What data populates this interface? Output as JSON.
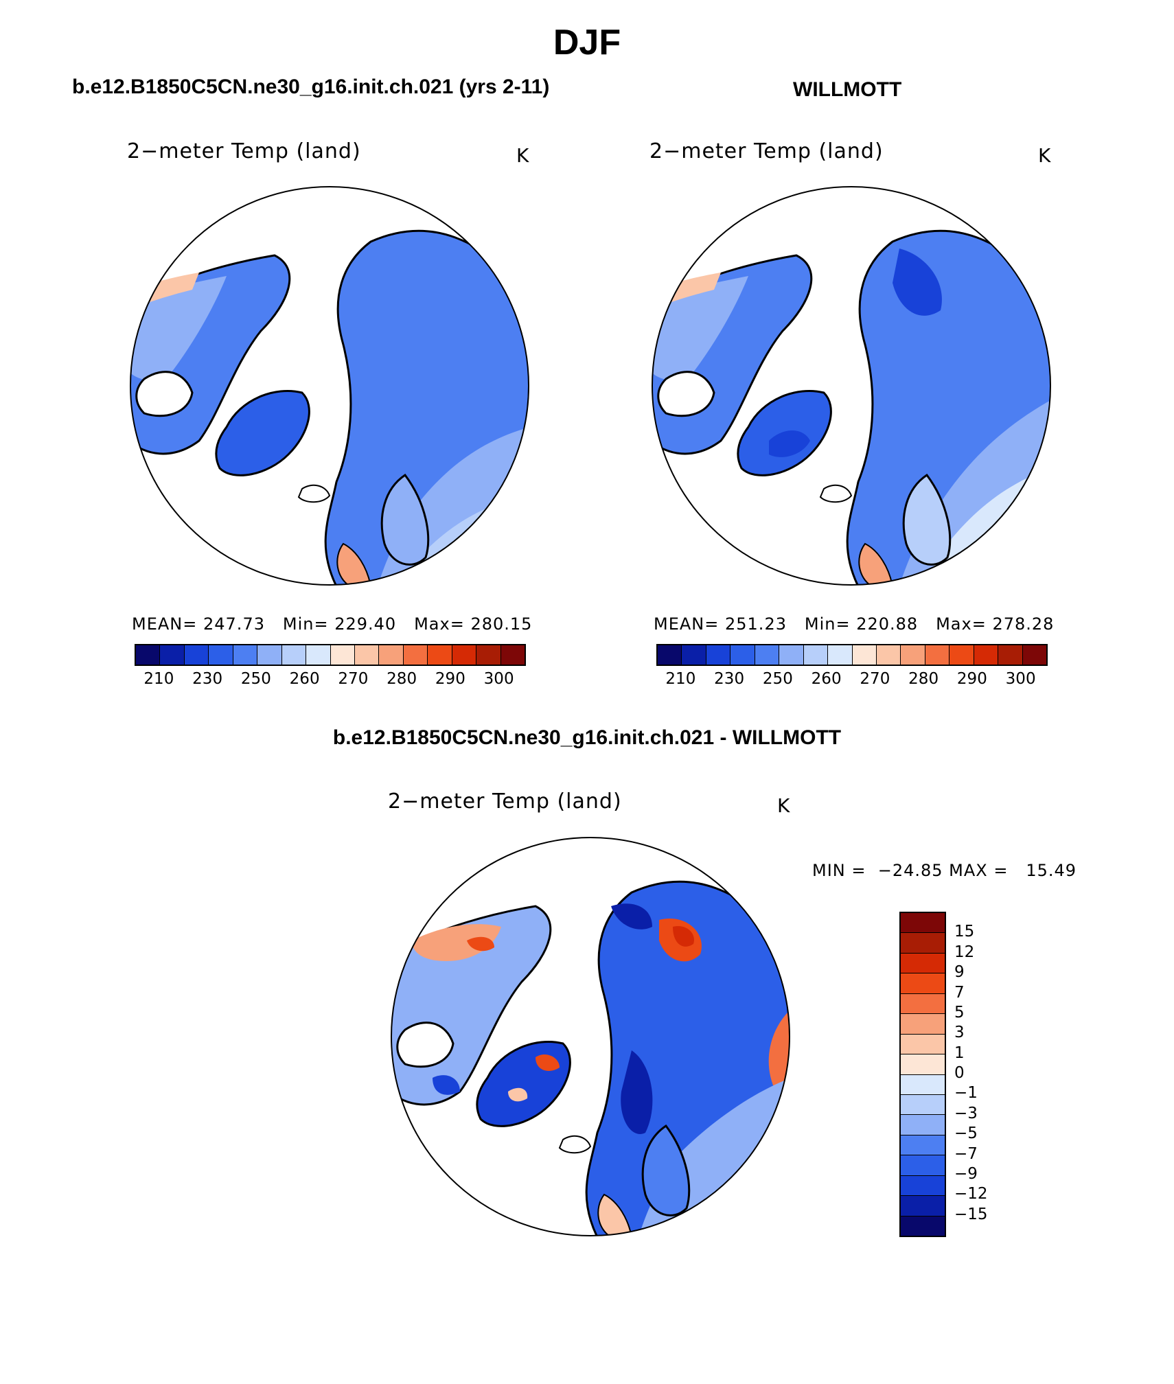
{
  "page": {
    "title": "DJF"
  },
  "panels": [
    {
      "case_title": "b.e12.B1850C5CN.ne30_g16.init.ch.021 (yrs 2-11)",
      "plot_title": "2−meter Temp (land)",
      "units": "K",
      "stats": {
        "mean_label": "MEAN=",
        "mean": "247.73",
        "min_label": "Min=",
        "min": "229.40",
        "max_label": "Max=",
        "max": "280.15"
      }
    },
    {
      "case_title": "WILLMOTT",
      "plot_title": "2−meter Temp (land)",
      "units": "K",
      "stats": {
        "mean_label": "MEAN=",
        "mean": "251.23",
        "min_label": "Min=",
        "min": "220.88",
        "max_label": "Max=",
        "max": "278.28"
      }
    }
  ],
  "diff_panel": {
    "case_title": "b.e12.B1850C5CN.ne30_g16.init.ch.021 - WILLMOTT",
    "plot_title": "2−meter Temp (land)",
    "units": "K",
    "minmax": "MIN =  −24.85 MAX =   15.49"
  },
  "colorbar_abs": {
    "colors": [
      "#08086b",
      "#0a1fa8",
      "#1842d8",
      "#2c5fe8",
      "#4d7ff2",
      "#8fb0f7",
      "#b7cffa",
      "#d9e8fc",
      "#fde6d6",
      "#fbc6a8",
      "#f7a17a",
      "#f36f40",
      "#ec4a15",
      "#d52a05",
      "#a81d05",
      "#7d0707"
    ],
    "tick_labels": [
      "210",
      "230",
      "250",
      "260",
      "270",
      "280",
      "290",
      "300"
    ]
  },
  "colorbar_diff": {
    "colors": [
      "#7d0707",
      "#a81d05",
      "#d52a05",
      "#ec4a15",
      "#f36f40",
      "#f7a17a",
      "#fbc6a8",
      "#fde6d6",
      "#d9e8fc",
      "#b7cffa",
      "#8fb0f7",
      "#4d7ff2",
      "#2c5fe8",
      "#1842d8",
      "#0a1fa8",
      "#08086b"
    ],
    "tick_labels": [
      "15",
      "12",
      "9",
      "7",
      "5",
      "3",
      "1",
      "0",
      "−1",
      "−3",
      "−5",
      "−7",
      "−9",
      "−12",
      "−15"
    ]
  }
}
